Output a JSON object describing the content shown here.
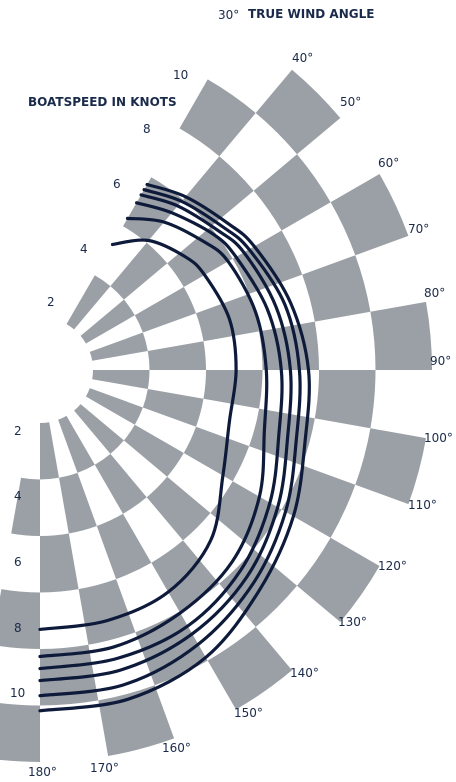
{
  "chart_data": {
    "type": "polar",
    "title": "TRUE WIND ANGLE",
    "speed_title": "BOATSPEED IN KNOTS",
    "angle_labels": [
      "30°",
      "40°",
      "50°",
      "60°",
      "70°",
      "80°",
      "90°",
      "100°",
      "110°",
      "120°",
      "130°",
      "140°",
      "150°",
      "160°",
      "170°",
      "180°"
    ],
    "speed_labels_upper": [
      "2",
      "4",
      "6",
      "8",
      "10"
    ],
    "speed_labels_lower": [
      "2",
      "4",
      "6",
      "8",
      "10"
    ],
    "speed_range": [
      0,
      12
    ],
    "angle_range": [
      30,
      180
    ],
    "checker_colors": [
      "#9ba0a6",
      "#ffffff"
    ],
    "curve_color": "#0d1a3a",
    "series": [
      {
        "points": [
          [
            30,
            4.3
          ],
          [
            40,
            5.1
          ],
          [
            52,
            5.6
          ],
          [
            60,
            5.8
          ],
          [
            75,
            6.0
          ],
          [
            90,
            6.0
          ],
          [
            105,
            6.0
          ],
          [
            120,
            6.5
          ],
          [
            135,
            7.5
          ],
          [
            150,
            8.0
          ],
          [
            165,
            8.1
          ],
          [
            180,
            8.1
          ]
        ]
      },
      {
        "points": [
          [
            30,
            5.3
          ],
          [
            40,
            5.9
          ],
          [
            52,
            6.4
          ],
          [
            60,
            6.7
          ],
          [
            75,
            6.9
          ],
          [
            90,
            7.0
          ],
          [
            105,
            7.2
          ],
          [
            120,
            7.9
          ],
          [
            135,
            8.5
          ],
          [
            150,
            8.8
          ],
          [
            165,
            9.0
          ],
          [
            180,
            9.0
          ]
        ]
      },
      {
        "points": [
          [
            30,
            5.9
          ],
          [
            40,
            6.3
          ],
          [
            52,
            6.8
          ],
          [
            60,
            7.0
          ],
          [
            75,
            7.3
          ],
          [
            90,
            7.5
          ],
          [
            105,
            7.7
          ],
          [
            120,
            8.3
          ],
          [
            135,
            8.9
          ],
          [
            150,
            9.3
          ],
          [
            165,
            9.4
          ],
          [
            180,
            9.4
          ]
        ]
      },
      {
        "points": [
          [
            30,
            6.2
          ],
          [
            40,
            6.6
          ],
          [
            52,
            7.0
          ],
          [
            60,
            7.3
          ],
          [
            75,
            7.6
          ],
          [
            90,
            7.8
          ],
          [
            105,
            8.0
          ],
          [
            120,
            8.6
          ],
          [
            135,
            9.2
          ],
          [
            150,
            9.6
          ],
          [
            165,
            9.8
          ],
          [
            180,
            9.8
          ]
        ]
      },
      {
        "points": [
          [
            30,
            6.4
          ],
          [
            40,
            6.8
          ],
          [
            52,
            7.2
          ],
          [
            60,
            7.5
          ],
          [
            75,
            7.9
          ],
          [
            90,
            8.1
          ],
          [
            105,
            8.3
          ],
          [
            120,
            8.9
          ],
          [
            135,
            9.5
          ],
          [
            150,
            10.0
          ],
          [
            165,
            10.3
          ],
          [
            180,
            10.3
          ]
        ]
      },
      {
        "points": [
          [
            30,
            6.6
          ],
          [
            40,
            7.0
          ],
          [
            52,
            7.4
          ],
          [
            60,
            7.7
          ],
          [
            75,
            8.1
          ],
          [
            90,
            8.4
          ],
          [
            105,
            8.6
          ],
          [
            120,
            9.2
          ],
          [
            135,
            9.8
          ],
          [
            150,
            10.5
          ],
          [
            165,
            10.8
          ],
          [
            180,
            10.8
          ]
        ]
      }
    ]
  }
}
